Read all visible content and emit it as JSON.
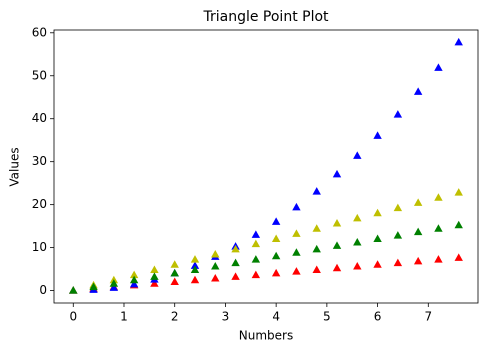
{
  "chart_data": {
    "type": "scatter",
    "title": "Triangle Point Plot",
    "x_label": "Numbers",
    "y_label": "Values",
    "x": [
      0,
      0.4,
      0.8,
      1.2,
      1.6,
      2,
      2.4,
      2.8,
      3.2,
      3.6,
      4,
      4.4,
      4.8,
      5.2,
      5.6,
      6,
      6.4,
      6.8,
      7.2,
      7.6
    ],
    "series": [
      {
        "color": "#ff0000",
        "values": [
          0,
          0.4,
          0.8,
          1.2,
          1.6,
          2,
          2.4,
          2.8,
          3.2,
          3.6,
          4,
          4.4,
          4.8,
          5.2,
          5.6,
          6,
          6.4,
          6.8,
          7.2,
          7.6
        ]
      },
      {
        "color": "#0000ff",
        "values": [
          0,
          0.16,
          0.64,
          1.44,
          2.56,
          4,
          5.76,
          7.84,
          10.24,
          12.96,
          16,
          19.36,
          23.04,
          27.04,
          31.36,
          36,
          40.96,
          46.24,
          51.84,
          57.76
        ]
      },
      {
        "color": "#bfbf00",
        "values": [
          0,
          1.2,
          2.4,
          3.6,
          4.8,
          6,
          7.2,
          8.4,
          9.6,
          10.8,
          12,
          13.2,
          14.4,
          15.6,
          16.8,
          18,
          19.2,
          20.4,
          21.6,
          22.8
        ]
      },
      {
        "color": "#008000",
        "values": [
          0,
          0.8,
          1.6,
          2.4,
          3.2,
          4,
          4.8,
          5.6,
          6.4,
          7.2,
          8,
          8.8,
          9.6,
          10.4,
          11.2,
          12,
          12.8,
          13.6,
          14.4,
          15.2
        ]
      }
    ],
    "marker": "triangle",
    "xlim": [
      -0.38,
      7.98
    ],
    "ylim": [
      -2.89,
      60.65
    ],
    "xticks": [
      0,
      1,
      2,
      3,
      4,
      5,
      6,
      7
    ],
    "yticks": [
      0,
      10,
      20,
      30,
      40,
      50,
      60
    ],
    "grid": false
  }
}
